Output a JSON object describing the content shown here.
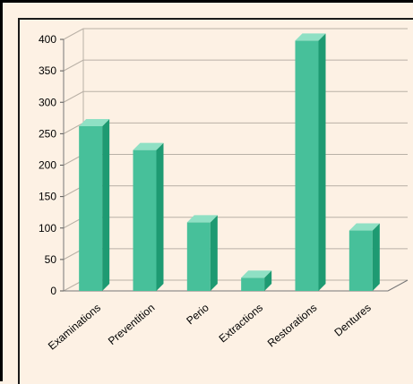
{
  "colors": {
    "background": "#fdf1e4",
    "bar_front": "#47c09a",
    "bar_side": "#1e9a72",
    "bar_top": "#8fe0c4",
    "grid": "#b9b1a6"
  },
  "chart_data": {
    "type": "bar",
    "title": "",
    "xlabel": "",
    "ylabel": "",
    "categories": [
      "Examinations",
      "Preventition",
      "Perio",
      "Extractions",
      "Restorations",
      "Dentures"
    ],
    "values": [
      262,
      224,
      109,
      21,
      398,
      96
    ],
    "ylim": [
      0,
      400
    ],
    "yticks": [
      0,
      50,
      100,
      150,
      200,
      250,
      300,
      350,
      400
    ],
    "grid": true,
    "legend": "none",
    "style": "3d-column"
  }
}
